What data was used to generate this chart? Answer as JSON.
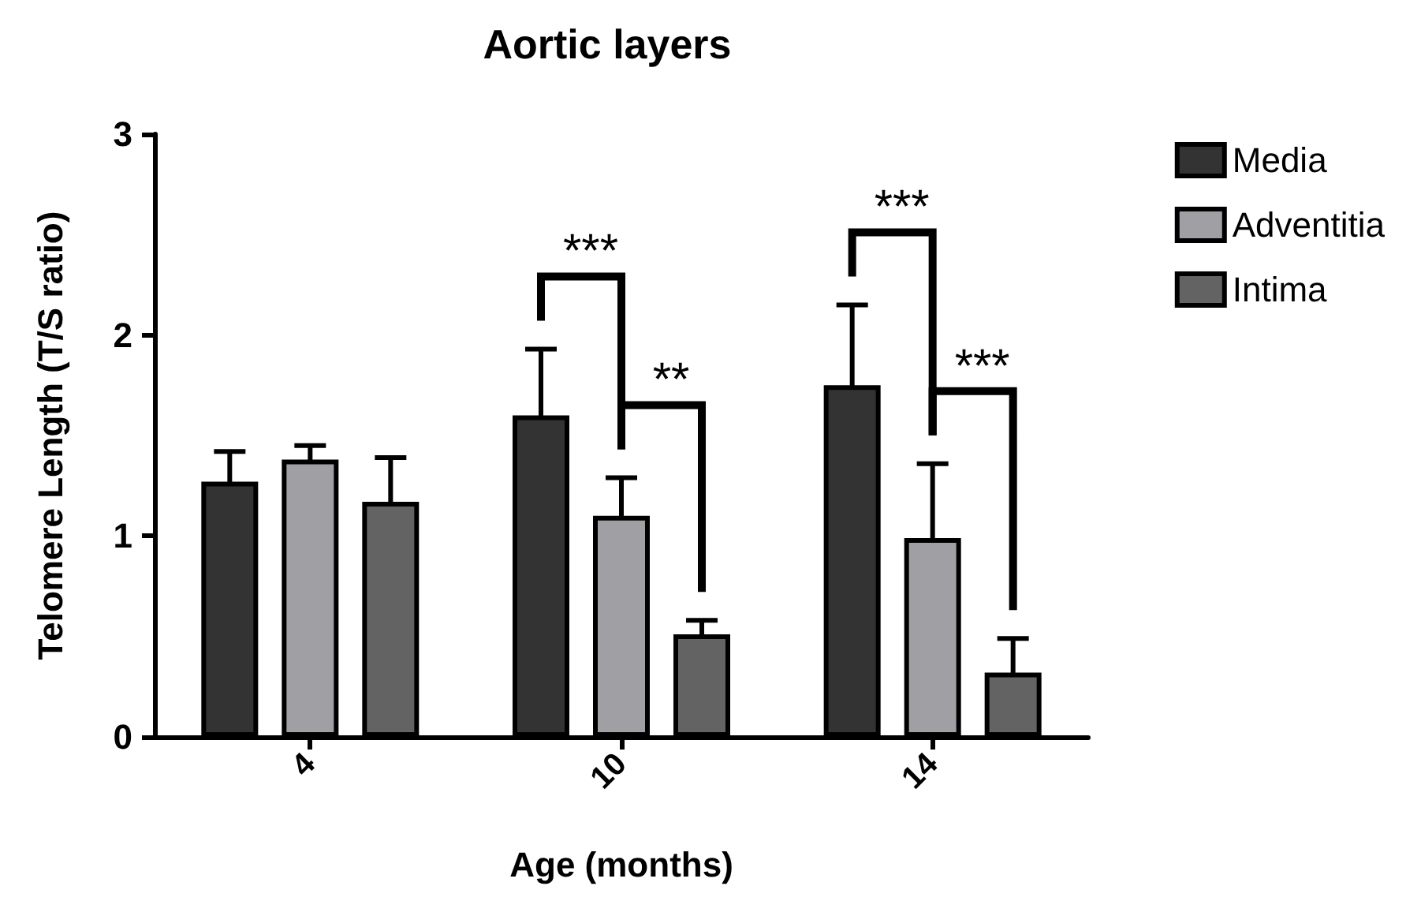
{
  "chart_data": {
    "type": "bar",
    "title": "Aortic layers",
    "xlabel": "Age (months)",
    "ylabel": "Telomere Length (T/S ratio)",
    "categories": [
      "4",
      "10",
      "14"
    ],
    "series": [
      {
        "name": "Media",
        "color": "#333333",
        "values": [
          1.27,
          1.6,
          1.75
        ],
        "errors": [
          0.15,
          0.33,
          0.4
        ]
      },
      {
        "name": "Adventitia",
        "color": "#a0a0a4",
        "values": [
          1.38,
          1.1,
          0.99
        ],
        "errors": [
          0.07,
          0.19,
          0.37
        ]
      },
      {
        "name": "Intima",
        "color": "#636363",
        "values": [
          1.17,
          0.51,
          0.32
        ],
        "errors": [
          0.22,
          0.07,
          0.17
        ]
      }
    ],
    "ylim": [
      0,
      3
    ],
    "yticks": [
      0,
      1,
      2,
      3
    ],
    "grid": false,
    "legend": "top right",
    "annotations": [
      "***",
      "**",
      "***",
      "***"
    ]
  }
}
